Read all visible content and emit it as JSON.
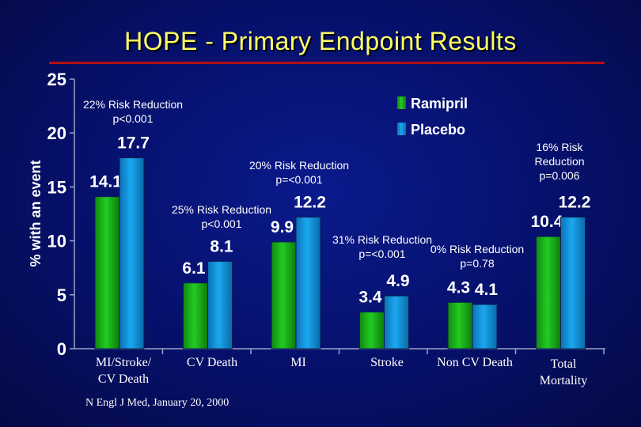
{
  "slide": {
    "title": "HOPE - Primary Endpoint Results",
    "footnote": "N Engl J Med, January 20, 2000"
  },
  "colors": {
    "ramipril": "#22cc22",
    "placebo": "#1aa8ee",
    "title": "#ffff66",
    "rule": "#b01010",
    "text": "#ffffff"
  },
  "chart_data": {
    "type": "bar",
    "ylabel": "% with an event",
    "ylim": [
      0,
      25
    ],
    "yticks": [
      "0",
      "5",
      "10",
      "15",
      "20",
      "25"
    ],
    "categories": [
      "MI/Stroke/ CV Death",
      "CV Death",
      "MI",
      "Stroke",
      "Non CV Death",
      "Total Mortality"
    ],
    "series": [
      {
        "name": "Ramipril",
        "values": [
          14.1,
          6.1,
          9.9,
          3.4,
          4.3,
          10.4
        ]
      },
      {
        "name": "Placebo",
        "values": [
          17.7,
          8.1,
          12.2,
          4.9,
          4.1,
          12.2
        ]
      }
    ],
    "value_labels": {
      "Ramipril": [
        "14.1",
        "6.1",
        "9.9",
        "3.4",
        "4.3",
        "10.4"
      ],
      "Placebo": [
        "17.7",
        "8.1",
        "12.2",
        "4.9",
        "4.1",
        "12.2"
      ]
    },
    "legend": [
      "Ramipril",
      "Placebo"
    ],
    "annotations": [
      {
        "line1": "22% Risk Reduction",
        "line2": "p<0.001"
      },
      {
        "line1": "25% Risk Reduction",
        "line2": "p<0.001"
      },
      {
        "line1": "20% Risk Reduction",
        "line2": "p=<0.001"
      },
      {
        "line1": "31% Risk Reduction",
        "line2": "p=<0.001"
      },
      {
        "line1": "0% Risk Reduction",
        "line2": "p=0.78"
      },
      {
        "line1": "16% Risk",
        "line2": "Reduction",
        "line3": "p=0.006"
      }
    ]
  }
}
